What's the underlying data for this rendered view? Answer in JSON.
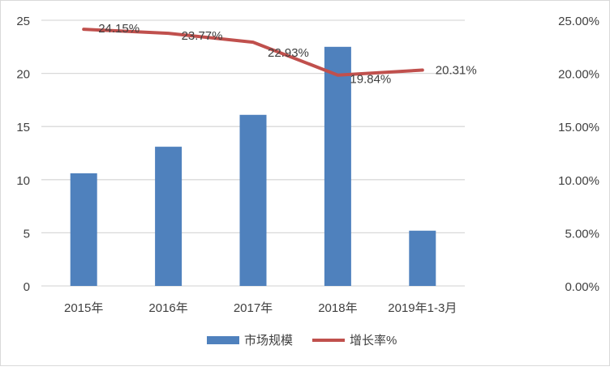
{
  "chart_data": {
    "type": "bar+line",
    "categories": [
      "2015年",
      "2016年",
      "2017年",
      "2018年",
      "2019年1-3月"
    ],
    "series": [
      {
        "name": "市场规模",
        "type": "bar",
        "axis": "left",
        "color": "#4f81bd",
        "values": [
          10.6,
          13.1,
          16.1,
          22.5,
          5.2
        ]
      },
      {
        "name": "增长率%",
        "type": "line",
        "axis": "right",
        "color": "#c0504d",
        "values": [
          24.15,
          23.77,
          22.93,
          19.84,
          20.31
        ],
        "data_labels": [
          "24.15%",
          "23.77%",
          "22.93%",
          "19.84%",
          "20.31%"
        ]
      }
    ],
    "y_left": {
      "ylim": [
        0,
        25
      ],
      "ticks": [
        "0",
        "5",
        "10",
        "15",
        "20",
        "25"
      ]
    },
    "y_right": {
      "ylim": [
        0,
        25
      ],
      "ticks": [
        "0.00%",
        "5.00%",
        "10.00%",
        "15.00%",
        "20.00%",
        "25.00%"
      ]
    },
    "grid": true,
    "legend": "bottom"
  }
}
